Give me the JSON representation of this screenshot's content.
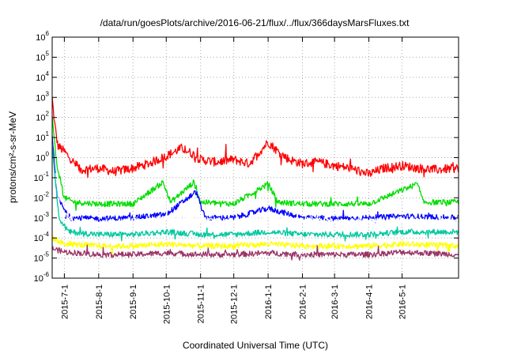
{
  "chart_data": {
    "type": "line",
    "title": "/data/run/goesPlots/archive/2016-06-21/flux/../flux/366daysMarsFluxes.txt",
    "xlabel": "Coordinated Universal Time (UTC)",
    "ylabel": "protons/cm²-s-sr-MeV",
    "x_domain": [
      "2015-06-20",
      "2016-06-21"
    ],
    "yscale": "log",
    "ylim": [
      1e-06,
      1000000.0
    ],
    "grid": true,
    "x_ticks": [
      "2015-7-1",
      "2015-8-1",
      "2015-9-1",
      "2015-10-1",
      "2015-11-1",
      "2015-12-1",
      "2016-1-1",
      "2016-2-1",
      "2016-3-1",
      "2016-4-1",
      "2016-5-1"
    ],
    "y_ticks": [
      {
        "base": "10",
        "exp": "-6",
        "value": 1e-06
      },
      {
        "base": "10",
        "exp": "-5",
        "value": 1e-05
      },
      {
        "base": "10",
        "exp": "-4",
        "value": 0.0001
      },
      {
        "base": "10",
        "exp": "-3",
        "value": 0.001
      },
      {
        "base": "10",
        "exp": "-2",
        "value": 0.01
      },
      {
        "base": "10",
        "exp": "-1",
        "value": 0.1
      },
      {
        "base": "10",
        "exp": "0",
        "value": 1
      },
      {
        "base": "10",
        "exp": "1",
        "value": 10
      },
      {
        "base": "10",
        "exp": "2",
        "value": 100
      },
      {
        "base": "10",
        "exp": "3",
        "value": 1000
      },
      {
        "base": "10",
        "exp": "4",
        "value": 10000
      },
      {
        "base": "10",
        "exp": "5",
        "value": 100000
      },
      {
        "base": "10",
        "exp": "6",
        "value": 1000000
      }
    ],
    "series": [
      {
        "color": "#ff0000",
        "points": [
          [
            "2015-06-20",
            900
          ],
          [
            "2015-06-22",
            60
          ],
          [
            "2015-06-25",
            4
          ],
          [
            "2015-07-01",
            2
          ],
          [
            "2015-07-15",
            0.25
          ],
          [
            "2015-08-01",
            0.3
          ],
          [
            "2015-08-15",
            0.2
          ],
          [
            "2015-09-01",
            0.3
          ],
          [
            "2015-09-15",
            0.5
          ],
          [
            "2015-10-01",
            1.2
          ],
          [
            "2015-10-15",
            3
          ],
          [
            "2015-10-25",
            1.5
          ],
          [
            "2015-11-01",
            0.8
          ],
          [
            "2015-11-15",
            0.6
          ],
          [
            "2015-12-01",
            0.8
          ],
          [
            "2015-12-15",
            0.5
          ],
          [
            "2016-01-01",
            6
          ],
          [
            "2016-01-10",
            2
          ],
          [
            "2016-01-20",
            0.8
          ],
          [
            "2016-02-01",
            0.5
          ],
          [
            "2016-02-15",
            0.6
          ],
          [
            "2016-03-01",
            0.4
          ],
          [
            "2016-03-15",
            0.3
          ],
          [
            "2016-04-01",
            0.15
          ],
          [
            "2016-04-15",
            0.3
          ],
          [
            "2016-05-01",
            0.4
          ],
          [
            "2016-05-15",
            0.3
          ],
          [
            "2016-06-01",
            0.25
          ],
          [
            "2016-06-21",
            0.3
          ]
        ]
      },
      {
        "color": "#00dd00",
        "points": [
          [
            "2015-06-20",
            100
          ],
          [
            "2015-06-24",
            0.5
          ],
          [
            "2015-07-01",
            0.01
          ],
          [
            "2015-07-10",
            0.006
          ],
          [
            "2015-08-01",
            0.005
          ],
          [
            "2015-09-01",
            0.005
          ],
          [
            "2015-09-28",
            0.06
          ],
          [
            "2015-10-05",
            0.006
          ],
          [
            "2015-10-26",
            0.06
          ],
          [
            "2015-11-01",
            0.006
          ],
          [
            "2015-12-01",
            0.005
          ],
          [
            "2016-01-01",
            0.05
          ],
          [
            "2016-01-10",
            0.006
          ],
          [
            "2016-02-01",
            0.005
          ],
          [
            "2016-03-01",
            0.005
          ],
          [
            "2016-04-01",
            0.005
          ],
          [
            "2016-05-15",
            0.05
          ],
          [
            "2016-05-20",
            0.006
          ],
          [
            "2016-06-21",
            0.006
          ]
        ]
      },
      {
        "color": "#0000ff",
        "points": [
          [
            "2015-06-20",
            10
          ],
          [
            "2015-06-25",
            0.01
          ],
          [
            "2015-07-05",
            0.001
          ],
          [
            "2015-08-01",
            0.0009
          ],
          [
            "2015-09-01",
            0.001
          ],
          [
            "2015-10-01",
            0.0015
          ],
          [
            "2015-10-28",
            0.02
          ],
          [
            "2015-11-05",
            0.001
          ],
          [
            "2015-12-01",
            0.001
          ],
          [
            "2016-01-01",
            0.003
          ],
          [
            "2016-02-01",
            0.001
          ],
          [
            "2016-03-01",
            0.0009
          ],
          [
            "2016-04-01",
            0.001
          ],
          [
            "2016-05-01",
            0.0012
          ],
          [
            "2016-06-21",
            0.001
          ]
        ]
      },
      {
        "color": "#ffffff",
        "points": [
          [
            "2015-06-20",
            1
          ],
          [
            "2015-06-28",
            0.002
          ],
          [
            "2015-07-10",
            0.0006
          ],
          [
            "2015-08-01",
            0.0006
          ],
          [
            "2015-09-01",
            0.0007
          ],
          [
            "2015-10-01",
            0.0009
          ],
          [
            "2015-11-01",
            0.0008
          ],
          [
            "2015-12-01",
            0.0007
          ],
          [
            "2016-01-01",
            0.0012
          ],
          [
            "2016-02-01",
            0.0008
          ],
          [
            "2016-03-01",
            0.0007
          ],
          [
            "2016-04-01",
            0.0007
          ],
          [
            "2016-05-01",
            0.0008
          ],
          [
            "2016-06-21",
            0.0008
          ]
        ]
      },
      {
        "color": "#00c8a0",
        "points": [
          [
            "2015-06-20",
            5
          ],
          [
            "2015-06-26",
            0.001
          ],
          [
            "2015-07-05",
            0.0002
          ],
          [
            "2015-08-01",
            0.00015
          ],
          [
            "2015-09-01",
            0.00015
          ],
          [
            "2015-10-01",
            0.0002
          ],
          [
            "2015-11-01",
            0.00015
          ],
          [
            "2015-12-01",
            0.00015
          ],
          [
            "2016-01-01",
            0.0002
          ],
          [
            "2016-02-01",
            0.00015
          ],
          [
            "2016-03-01",
            0.00015
          ],
          [
            "2016-04-01",
            0.00015
          ],
          [
            "2016-05-01",
            0.0002
          ],
          [
            "2016-06-21",
            0.0002
          ]
        ]
      },
      {
        "color": "#ffff00",
        "points": [
          [
            "2015-06-20",
            0.0001
          ],
          [
            "2015-07-01",
            5e-05
          ],
          [
            "2015-08-01",
            4e-05
          ],
          [
            "2015-09-01",
            4e-05
          ],
          [
            "2015-10-01",
            5e-05
          ],
          [
            "2015-11-01",
            4e-05
          ],
          [
            "2015-12-01",
            4e-05
          ],
          [
            "2016-01-01",
            5e-05
          ],
          [
            "2016-02-01",
            4e-05
          ],
          [
            "2016-03-01",
            4e-05
          ],
          [
            "2016-04-01",
            4e-05
          ],
          [
            "2016-05-01",
            5e-05
          ],
          [
            "2016-06-21",
            4e-05
          ]
        ]
      },
      {
        "color": "#9b3366",
        "points": [
          [
            "2015-06-20",
            3e-05
          ],
          [
            "2015-07-01",
            2e-05
          ],
          [
            "2015-08-01",
            1.5e-05
          ],
          [
            "2015-09-01",
            1.5e-05
          ],
          [
            "2015-10-01",
            1.8e-05
          ],
          [
            "2015-11-01",
            1.5e-05
          ],
          [
            "2015-12-01",
            1.5e-05
          ],
          [
            "2016-01-01",
            1.8e-05
          ],
          [
            "2016-02-01",
            1.5e-05
          ],
          [
            "2016-03-01",
            1.5e-05
          ],
          [
            "2016-04-01",
            1.5e-05
          ],
          [
            "2016-05-01",
            2e-05
          ],
          [
            "2016-06-21",
            1.5e-05
          ]
        ]
      }
    ]
  }
}
